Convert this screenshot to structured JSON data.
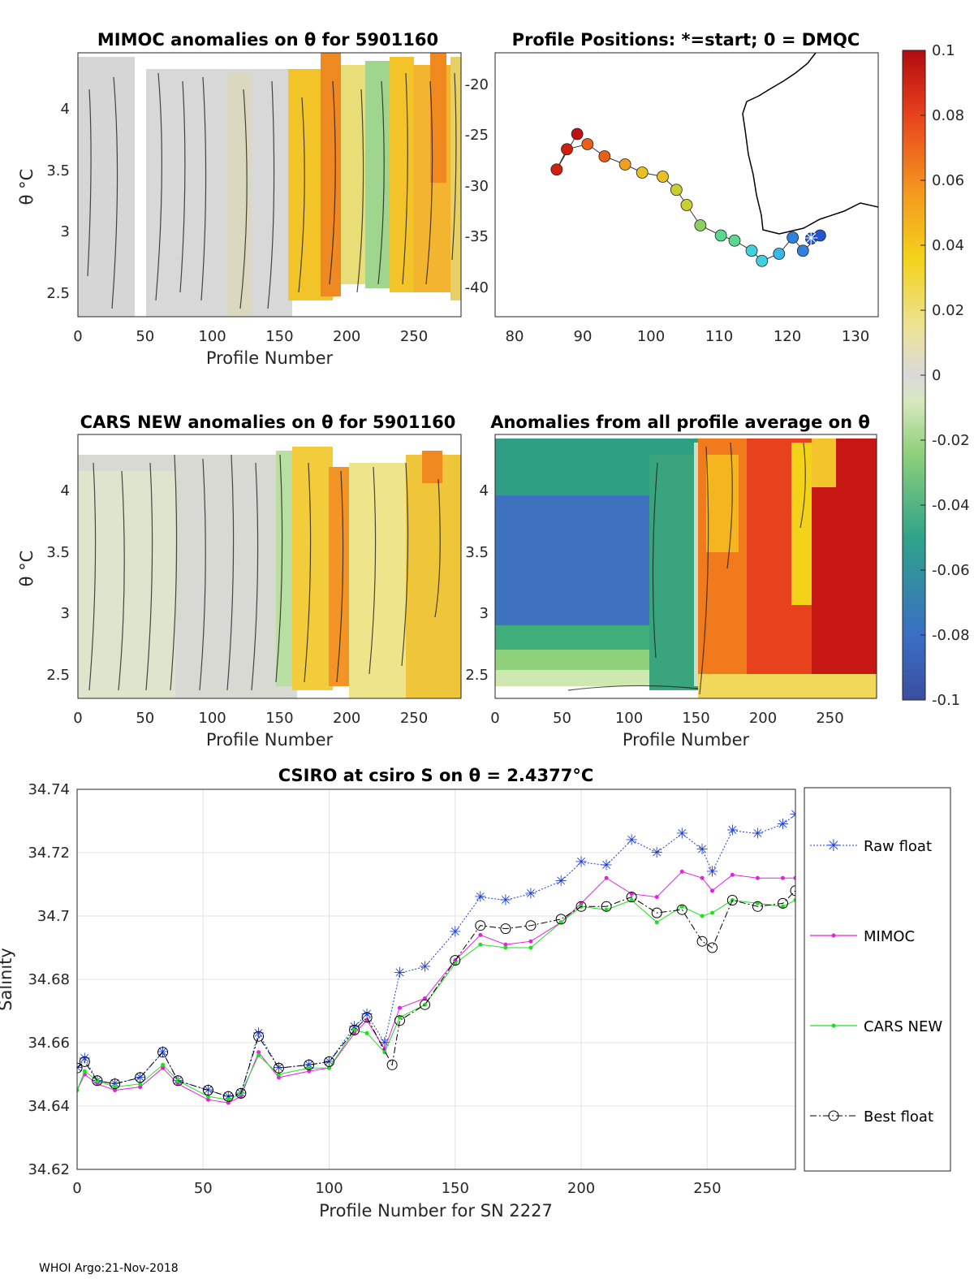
{
  "footer": "WHOI Argo:21-Nov-2018",
  "colorbar": {
    "ticks": [
      "0.1",
      "0.08",
      "0.06",
      "0.04",
      "0.02",
      "0",
      "-0.02",
      "-0.04",
      "-0.06",
      "-0.08",
      "-0.1"
    ],
    "min": -0.1,
    "max": 0.1
  },
  "chart_data": [
    {
      "id": "mimoc",
      "type": "heatmap",
      "title": "MIMOC anomalies on θ  for 5901160",
      "xlabel": "Profile Number",
      "ylabel": "θ °C",
      "xlim": [
        0,
        285
      ],
      "ylim": [
        2.3,
        4.45
      ],
      "xticks": [
        "0",
        "50",
        "100",
        "150",
        "200",
        "250"
      ],
      "yticks": [
        "2.5",
        "3",
        "3.5",
        "4"
      ],
      "anomaly_by_profile_segment": [
        {
          "from": 0,
          "to": 155,
          "value": 0.0
        },
        {
          "from": 155,
          "to": 190,
          "value": 0.04
        },
        {
          "from": 190,
          "to": 215,
          "value": 0.025
        },
        {
          "from": 215,
          "to": 285,
          "value": 0.04
        }
      ]
    },
    {
      "id": "positions",
      "type": "scatter",
      "title": "Profile Positions: *=start; 0 = DMQC",
      "xlim": [
        77,
        133
      ],
      "ylim": [
        -43,
        -17
      ],
      "xticks": [
        "80",
        "90",
        "100",
        "110",
        "120",
        "130"
      ],
      "yticks": [
        "-20",
        "-25",
        "-30",
        "-35",
        "-40"
      ],
      "start": {
        "lon": 123.2,
        "lat": -35.3
      },
      "track": [
        {
          "lon": 123.2,
          "lat": -35.3
        },
        {
          "lon": 124.5,
          "lat": -35.0
        },
        {
          "lon": 122.0,
          "lat": -36.5
        },
        {
          "lon": 120.5,
          "lat": -35.2
        },
        {
          "lon": 118.5,
          "lat": -36.8
        },
        {
          "lon": 116.0,
          "lat": -37.5
        },
        {
          "lon": 114.5,
          "lat": -36.5
        },
        {
          "lon": 112.0,
          "lat": -35.5
        },
        {
          "lon": 110.0,
          "lat": -35.0
        },
        {
          "lon": 107.0,
          "lat": -34.0
        },
        {
          "lon": 105.0,
          "lat": -32.0
        },
        {
          "lon": 103.5,
          "lat": -30.5
        },
        {
          "lon": 101.5,
          "lat": -29.2
        },
        {
          "lon": 98.5,
          "lat": -28.8
        },
        {
          "lon": 96.0,
          "lat": -28.0
        },
        {
          "lon": 93.0,
          "lat": -27.2
        },
        {
          "lon": 90.5,
          "lat": -26.0
        },
        {
          "lon": 87.5,
          "lat": -26.5
        },
        {
          "lon": 86.0,
          "lat": -28.5
        },
        {
          "lon": 89.0,
          "lat": -25.0
        }
      ]
    },
    {
      "id": "cars",
      "type": "heatmap",
      "title": "CARS NEW anomalies on θ for 5901160",
      "xlabel": "Profile Number",
      "ylabel": "θ °C",
      "xlim": [
        0,
        285
      ],
      "ylim": [
        2.3,
        4.45
      ],
      "xticks": [
        "0",
        "50",
        "100",
        "150",
        "200",
        "250"
      ],
      "yticks": [
        "2.5",
        "3",
        "3.5",
        "4"
      ],
      "anomaly_by_profile_segment": [
        {
          "from": 0,
          "to": 160,
          "value": 0.0
        },
        {
          "from": 160,
          "to": 285,
          "value": 0.025
        }
      ]
    },
    {
      "id": "avg",
      "type": "heatmap",
      "title": "Anomalies from all profile average on θ",
      "xlabel": "Profile Number",
      "xlim": [
        0,
        285
      ],
      "ylim": [
        2.3,
        4.45
      ],
      "xticks": [
        "0",
        "50",
        "100",
        "150",
        "200",
        "250"
      ],
      "yticks": [
        "2.5",
        "3",
        "3.5",
        "4"
      ],
      "anomaly_by_profile_segment": [
        {
          "from": 0,
          "to": 155,
          "value": -0.08
        },
        {
          "from": 155,
          "to": 210,
          "value": 0.07
        },
        {
          "from": 210,
          "to": 285,
          "value": 0.09
        }
      ]
    },
    {
      "id": "salinity",
      "type": "line",
      "title": "CSIRO at csiro S on θ = 2.4377°C",
      "xlabel": "Profile Number for SN 2227",
      "ylabel": "Salinity",
      "xlim": [
        0,
        285
      ],
      "ylim": [
        34.62,
        34.74
      ],
      "xticks": [
        "0",
        "50",
        "100",
        "150",
        "200",
        "250"
      ],
      "yticks": [
        "34.62",
        "34.64",
        "34.66",
        "34.68",
        "34.7",
        "34.72",
        "34.74"
      ],
      "series": [
        {
          "name": "Raw float",
          "color": "#1f3fd6",
          "x": [
            0,
            3,
            8,
            15,
            25,
            34,
            40,
            52,
            60,
            65,
            72,
            80,
            92,
            100,
            110,
            115,
            122,
            128,
            138,
            150,
            160,
            170,
            180,
            192,
            200,
            210,
            220,
            230,
            240,
            248,
            252,
            260,
            270,
            280,
            285
          ],
          "y": [
            34.652,
            34.655,
            34.648,
            34.647,
            34.649,
            34.657,
            34.648,
            34.645,
            34.643,
            34.644,
            34.663,
            34.652,
            34.653,
            34.654,
            34.665,
            34.669,
            34.66,
            34.682,
            34.684,
            34.695,
            34.706,
            34.705,
            34.707,
            34.711,
            34.717,
            34.716,
            34.724,
            34.72,
            34.726,
            34.721,
            34.714,
            34.727,
            34.726,
            34.729,
            34.732
          ]
        },
        {
          "name": "MIMOC",
          "color": "#e81fe0",
          "x": [
            0,
            3,
            8,
            15,
            25,
            34,
            40,
            52,
            60,
            65,
            72,
            80,
            92,
            100,
            110,
            115,
            122,
            128,
            138,
            150,
            160,
            170,
            180,
            192,
            200,
            210,
            220,
            230,
            240,
            248,
            252,
            260,
            270,
            280,
            285
          ],
          "y": [
            34.645,
            34.65,
            34.647,
            34.645,
            34.646,
            34.652,
            34.647,
            34.642,
            34.641,
            34.643,
            34.657,
            34.649,
            34.651,
            34.652,
            34.663,
            34.667,
            34.658,
            34.671,
            34.674,
            34.686,
            34.694,
            34.691,
            34.692,
            34.698,
            34.704,
            34.712,
            34.707,
            34.706,
            34.714,
            34.712,
            34.708,
            34.713,
            34.712,
            34.712,
            34.712
          ]
        },
        {
          "name": "CARS NEW",
          "color": "#1fe01f",
          "x": [
            0,
            3,
            8,
            15,
            25,
            34,
            40,
            52,
            60,
            65,
            72,
            80,
            92,
            100,
            110,
            115,
            122,
            128,
            138,
            150,
            160,
            170,
            180,
            192,
            200,
            210,
            220,
            230,
            240,
            248,
            252,
            260,
            270,
            280,
            285
          ],
          "y": [
            34.645,
            34.651,
            34.648,
            34.646,
            34.647,
            34.653,
            34.648,
            34.643,
            34.642,
            34.644,
            34.656,
            34.65,
            34.652,
            34.652,
            34.664,
            34.663,
            34.657,
            34.668,
            34.672,
            34.685,
            34.691,
            34.69,
            34.69,
            34.698,
            34.703,
            34.702,
            34.705,
            34.698,
            34.703,
            34.7,
            34.701,
            34.705,
            34.704,
            34.703,
            34.705
          ]
        },
        {
          "name": "Best float",
          "color": "#000000",
          "x": [
            0,
            3,
            8,
            15,
            25,
            34,
            40,
            52,
            60,
            65,
            72,
            80,
            92,
            100,
            110,
            115,
            125,
            128,
            138,
            150,
            160,
            170,
            180,
            192,
            200,
            210,
            220,
            230,
            240,
            248,
            252,
            260,
            270,
            280,
            285
          ],
          "y": [
            34.652,
            34.654,
            34.648,
            34.647,
            34.649,
            34.657,
            34.648,
            34.645,
            34.643,
            34.644,
            34.662,
            34.652,
            34.653,
            34.654,
            34.664,
            34.668,
            34.653,
            34.667,
            34.672,
            34.686,
            34.697,
            34.696,
            34.697,
            34.699,
            34.703,
            34.703,
            34.706,
            34.701,
            34.702,
            34.692,
            34.69,
            34.705,
            34.703,
            34.704,
            34.708
          ]
        }
      ]
    }
  ]
}
